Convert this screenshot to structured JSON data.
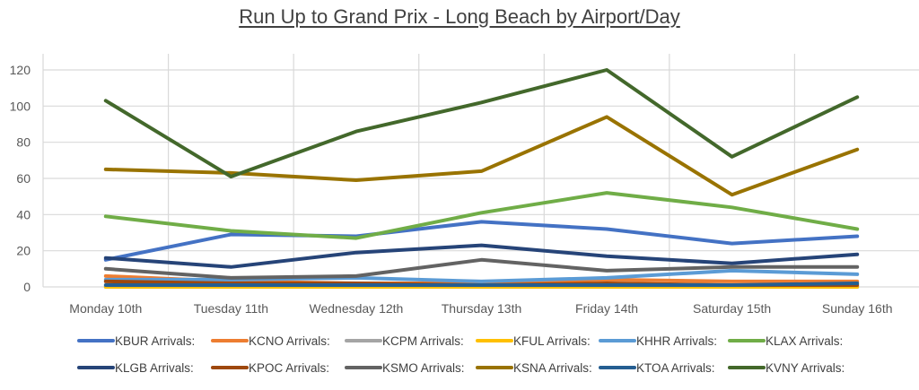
{
  "chart_data": {
    "type": "line",
    "title": "Run Up to Grand Prix - Long Beach by Airport/Day",
    "xlabel": "",
    "ylabel": "",
    "ylim": [
      0,
      120
    ],
    "yticks": [
      0,
      20,
      40,
      60,
      80,
      100,
      120
    ],
    "grid": true,
    "legend_position": "bottom",
    "categories": [
      "Monday 10th",
      "Tuesday 11th",
      "Wednesday 12th",
      "Thursday 13th",
      "Friday 14th",
      "Saturday 15th",
      "Sunday 16th"
    ],
    "series": [
      {
        "name": "KBUR Arrivals:",
        "color": "#4472C4",
        "values": [
          15,
          29,
          28,
          36,
          32,
          24,
          28
        ]
      },
      {
        "name": "KCNO Arrivals:",
        "color": "#ED7D31",
        "values": [
          6,
          3,
          2,
          2,
          4,
          3,
          3
        ]
      },
      {
        "name": "KCPM Arrivals:",
        "color": "#A5A5A5",
        "values": [
          0,
          0,
          0,
          0,
          0,
          0,
          0
        ]
      },
      {
        "name": "KFUL Arrivals:",
        "color": "#FFC000",
        "values": [
          0,
          0,
          0,
          0,
          0,
          0,
          0
        ]
      },
      {
        "name": "KHHR Arrivals:",
        "color": "#5B9BD5",
        "values": [
          4,
          4,
          5,
          3,
          5,
          9,
          7
        ]
      },
      {
        "name": "KLAX Arrivals:",
        "color": "#70AD47",
        "values": [
          39,
          31,
          27,
          41,
          52,
          44,
          32
        ]
      },
      {
        "name": "KLGB Arrivals:",
        "color": "#264478",
        "values": [
          16,
          11,
          19,
          23,
          17,
          13,
          18
        ]
      },
      {
        "name": "KPOC Arrivals:",
        "color": "#9E480E",
        "values": [
          3,
          2,
          2,
          1,
          2,
          1,
          1
        ]
      },
      {
        "name": "KSMO Arrivals:",
        "color": "#636363",
        "values": [
          10,
          5,
          6,
          15,
          9,
          11,
          11
        ]
      },
      {
        "name": "KSNA Arrivals:",
        "color": "#997300",
        "values": [
          65,
          63,
          59,
          64,
          94,
          51,
          76
        ]
      },
      {
        "name": "KTOA Arrivals:",
        "color": "#255E91",
        "values": [
          1,
          1,
          1,
          1,
          1,
          1,
          2
        ]
      },
      {
        "name": "KVNY Arrivals:",
        "color": "#43682B",
        "values": [
          103,
          61,
          86,
          102,
          120,
          72,
          105
        ]
      }
    ]
  }
}
